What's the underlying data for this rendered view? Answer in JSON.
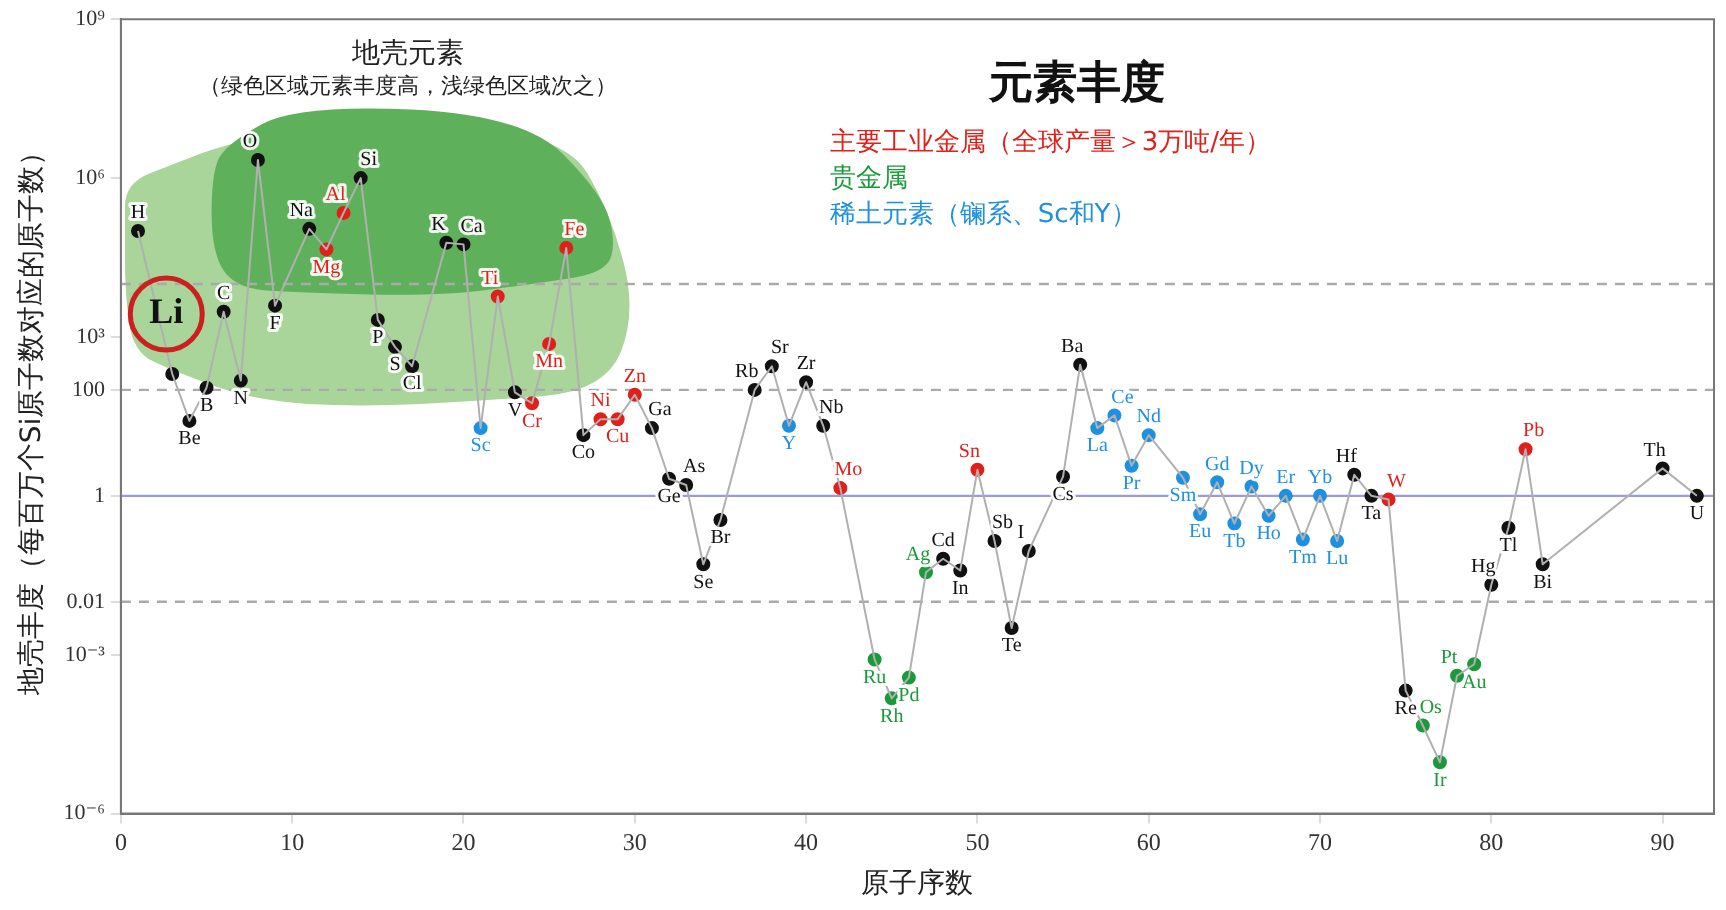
{
  "chart_data": {
    "type": "line",
    "title": "元素丰度",
    "xlabel": "原子序数",
    "ylabel": "地壳丰度（每百万个Si原子数对应的原子数）",
    "legend": "top",
    "grid": false,
    "log": "y",
    "xlim": [
      0,
      93
    ],
    "xticks": [
      0,
      10,
      20,
      30,
      40,
      50,
      60,
      70,
      80,
      90
    ],
    "ylim": [
      1e-06,
      1000000000
    ],
    "yticks": [
      {
        "value": 1000000000,
        "label": "10⁹"
      },
      {
        "value": 1000000,
        "label": "10⁶"
      },
      {
        "value": 1000,
        "label": "10³"
      },
      100,
      1,
      0.01,
      {
        "value": 0.001,
        "label": "10⁻³"
      },
      {
        "value": 1e-06,
        "label": "10⁻⁶"
      }
    ],
    "ref_lines": [
      {
        "axis": "y",
        "value": 10000,
        "color": "#aaaaaa",
        "line_style": "dashed"
      },
      {
        "axis": "y",
        "value": 100,
        "color": "#aaaaaa",
        "line_style": "dashed"
      },
      {
        "axis": "y",
        "value": 1,
        "color": "#9a9ae0",
        "line_style": "solid"
      },
      {
        "axis": "y",
        "value": 0.01,
        "color": "#aaaaaa",
        "line_style": "dashed"
      }
    ],
    "series": [
      {
        "marker": "none",
        "color": "#b0b0b0",
        "x": [
          1,
          3,
          4,
          5,
          6,
          7,
          8,
          9,
          11,
          12,
          13,
          14,
          15,
          16,
          17,
          19,
          20,
          21,
          22,
          23,
          24,
          25,
          26,
          27,
          28,
          29,
          30,
          31,
          32,
          33,
          34,
          35,
          37,
          38,
          39,
          40,
          41,
          42,
          44,
          45,
          46,
          47,
          48,
          49,
          50,
          51,
          52,
          53,
          55,
          56,
          57,
          58,
          59,
          60,
          62,
          63,
          64,
          65,
          66,
          67,
          68,
          69,
          70,
          71,
          72,
          73,
          74,
          75,
          76,
          77,
          78,
          79,
          80,
          81,
          82,
          83,
          90,
          92
        ],
        "values": [
          100000,
          200,
          26,
          110,
          3000,
          150,
          2200000,
          3900,
          110000,
          45000,
          220000,
          1000000,
          2100,
          650,
          280,
          60000,
          56000,
          19,
          5800,
          90,
          56,
          740,
          48000,
          14,
          28,
          28,
          81,
          19,
          2.1,
          1.6,
          0.051,
          0.35,
          100,
          280,
          21,
          140,
          21,
          1.4,
          0.00081,
          0.00015,
          0.00037,
          0.036,
          0.065,
          0.039,
          3.1,
          0.14,
          0.0032,
          0.091,
          2.3,
          300,
          19,
          33,
          3.7,
          14,
          2.2,
          0.45,
          1.8,
          0.3,
          1.5,
          0.42,
          1,
          0.15,
          1,
          0.14,
          2.5,
          1,
          0.85,
          0.00021,
          4.6e-05,
          9.3e-06,
          0.0004,
          0.00066,
          0.021,
          0.25,
          7.6,
          0.051,
          3.3,
          1
        ]
      },
      {
        "type": "scatter",
        "marker": "circle",
        "color": "#111111",
        "x": [
          1,
          3,
          4,
          5,
          6,
          7,
          8,
          9,
          11,
          14,
          15,
          16,
          17,
          19,
          20,
          23,
          27,
          31,
          32,
          33,
          34,
          35,
          37,
          38,
          40,
          41,
          48,
          49,
          51,
          52,
          53,
          55,
          56,
          72,
          73,
          75,
          80,
          81,
          83,
          90,
          92
        ],
        "values": [
          100000,
          200,
          26,
          110,
          3000,
          150,
          2200000,
          3900,
          110000,
          1000000,
          2100,
          650,
          280,
          60000,
          56000,
          90,
          14,
          19,
          2.1,
          1.6,
          0.051,
          0.35,
          100,
          280,
          140,
          21,
          0.065,
          0.039,
          0.14,
          0.0032,
          0.091,
          2.3,
          300,
          2.5,
          1,
          0.00021,
          0.021,
          0.25,
          0.051,
          3.3,
          1
        ]
      },
      {
        "type": "scatter",
        "marker": "circle",
        "name": "主要工业金属（全球产量＞3万吨/年）",
        "color": "#e0201b",
        "x": [
          12,
          13,
          22,
          24,
          25,
          26,
          28,
          29,
          30,
          42,
          50,
          74,
          82
        ],
        "values": [
          45000,
          220000,
          5800,
          56,
          740,
          48000,
          28,
          28,
          81,
          1.4,
          3.1,
          0.85,
          7.6
        ]
      },
      {
        "type": "scatter",
        "marker": "circle",
        "name": "贵金属",
        "color": "#1a9a3a",
        "x": [
          44,
          45,
          46,
          47,
          76,
          77,
          78,
          79
        ],
        "values": [
          0.00081,
          0.00015,
          0.00037,
          0.036,
          4.6e-05,
          9.3e-06,
          0.0004,
          0.00066
        ]
      },
      {
        "type": "scatter",
        "marker": "circle",
        "name": "稀土元素（镧系、Sc和Y）",
        "color": "#1e90e0",
        "x": [
          21,
          39,
          57,
          58,
          59,
          60,
          62,
          63,
          64,
          65,
          66,
          67,
          68,
          69,
          70,
          71
        ],
        "values": [
          19,
          21,
          19,
          33,
          3.7,
          14,
          2.2,
          0.45,
          1.8,
          0.3,
          1.5,
          0.42,
          1,
          0.15,
          1,
          0.14
        ]
      }
    ],
    "annotations": [
      "地壳元素",
      "（绿色区域元素丰度高，浅绿色区域次之）",
      {
        "text": "H",
        "x": 1,
        "y": 100000
      },
      {
        "text": "Li",
        "x": 3,
        "y": 200
      },
      {
        "text": "Be",
        "x": 4,
        "y": 26
      },
      {
        "text": "B",
        "x": 5,
        "y": 110
      },
      {
        "text": "C",
        "x": 6,
        "y": 3000
      },
      {
        "text": "N",
        "x": 7,
        "y": 150
      },
      {
        "text": "O",
        "x": 8,
        "y": 2200000
      },
      {
        "text": "F",
        "x": 9,
        "y": 3900
      },
      {
        "text": "Na",
        "x": 11,
        "y": 110000
      },
      {
        "text": "Mg",
        "x": 12,
        "y": 45000
      },
      {
        "text": "Al",
        "x": 13,
        "y": 220000
      },
      {
        "text": "Si",
        "x": 14,
        "y": 1000000
      },
      {
        "text": "P",
        "x": 15,
        "y": 2100
      },
      {
        "text": "S",
        "x": 16,
        "y": 650
      },
      {
        "text": "Cl",
        "x": 17,
        "y": 280
      },
      {
        "text": "K",
        "x": 19,
        "y": 60000
      },
      {
        "text": "Ca",
        "x": 20,
        "y": 56000
      },
      {
        "text": "Sc",
        "x": 21,
        "y": 19
      },
      {
        "text": "Ti",
        "x": 22,
        "y": 5800
      },
      {
        "text": "V",
        "x": 23,
        "y": 90
      },
      {
        "text": "Cr",
        "x": 24,
        "y": 56
      },
      {
        "text": "Mn",
        "x": 25,
        "y": 740
      },
      {
        "text": "Fe",
        "x": 26,
        "y": 48000
      },
      {
        "text": "Co",
        "x": 27,
        "y": 14
      },
      {
        "text": "Ni",
        "x": 28,
        "y": 28
      },
      {
        "text": "Cu",
        "x": 29,
        "y": 28
      },
      {
        "text": "Zn",
        "x": 30,
        "y": 81
      },
      {
        "text": "Ga",
        "x": 31,
        "y": 19
      },
      {
        "text": "Ge",
        "x": 32,
        "y": 2.1
      },
      {
        "text": "As",
        "x": 33,
        "y": 1.6
      },
      {
        "text": "Se",
        "x": 34,
        "y": 0.051
      },
      {
        "text": "Br",
        "x": 35,
        "y": 0.35
      },
      {
        "text": "Rb",
        "x": 37,
        "y": 100
      },
      {
        "text": "Sr",
        "x": 38,
        "y": 280
      },
      {
        "text": "Y",
        "x": 39,
        "y": 21
      },
      {
        "text": "Zr",
        "x": 40,
        "y": 140
      },
      {
        "text": "Nb",
        "x": 41,
        "y": 21
      },
      {
        "text": "Mo",
        "x": 42,
        "y": 1.4
      },
      {
        "text": "Ru",
        "x": 44,
        "y": 0.00081
      },
      {
        "text": "Rh",
        "x": 45,
        "y": 0.00015
      },
      {
        "text": "Pd",
        "x": 46,
        "y": 0.00037
      },
      {
        "text": "Ag",
        "x": 47,
        "y": 0.036
      },
      {
        "text": "Cd",
        "x": 48,
        "y": 0.065
      },
      {
        "text": "In",
        "x": 49,
        "y": 0.039
      },
      {
        "text": "Sn",
        "x": 50,
        "y": 3.1
      },
      {
        "text": "Sb",
        "x": 51,
        "y": 0.14
      },
      {
        "text": "Te",
        "x": 52,
        "y": 0.0032
      },
      {
        "text": "I",
        "x": 53,
        "y": 0.091
      },
      {
        "text": "Cs",
        "x": 55,
        "y": 2.3
      },
      {
        "text": "Ba",
        "x": 56,
        "y": 300
      },
      {
        "text": "La",
        "x": 57,
        "y": 19
      },
      {
        "text": "Ce",
        "x": 58,
        "y": 33
      },
      {
        "text": "Pr",
        "x": 59,
        "y": 3.7
      },
      {
        "text": "Nd",
        "x": 60,
        "y": 14
      },
      {
        "text": "Sm",
        "x": 62,
        "y": 2.2
      },
      {
        "text": "Eu",
        "x": 63,
        "y": 0.45
      },
      {
        "text": "Gd",
        "x": 64,
        "y": 1.8
      },
      {
        "text": "Tb",
        "x": 65,
        "y": 0.3
      },
      {
        "text": "Dy",
        "x": 66,
        "y": 1.5
      },
      {
        "text": "Ho",
        "x": 67,
        "y": 0.42
      },
      {
        "text": "Er",
        "x": 68,
        "y": 1
      },
      {
        "text": "Tm",
        "x": 69,
        "y": 0.15
      },
      {
        "text": "Yb",
        "x": 70,
        "y": 1
      },
      {
        "text": "Lu",
        "x": 71,
        "y": 0.14
      },
      {
        "text": "Hf",
        "x": 72,
        "y": 2.5
      },
      {
        "text": "Ta",
        "x": 73,
        "y": 1
      },
      {
        "text": "W",
        "x": 74,
        "y": 0.85
      },
      {
        "text": "Re",
        "x": 75,
        "y": 0.00021
      },
      {
        "text": "Os",
        "x": 76,
        "y": 4.6e-05
      },
      {
        "text": "Ir",
        "x": 77,
        "y": 9.3e-06
      },
      {
        "text": "Pt",
        "x": 78,
        "y": 0.0004
      },
      {
        "text": "Au",
        "x": 79,
        "y": 0.00066
      },
      {
        "text": "Hg",
        "x": 80,
        "y": 0.021
      },
      {
        "text": "Tl",
        "x": 81,
        "y": 0.25
      },
      {
        "text": "Pb",
        "x": 82,
        "y": 7.6
      },
      {
        "text": "Bi",
        "x": 83,
        "y": 0.051
      },
      {
        "text": "Th",
        "x": 90,
        "y": 3.3
      },
      {
        "text": "U",
        "x": 92,
        "y": 1
      }
    ]
  }
}
